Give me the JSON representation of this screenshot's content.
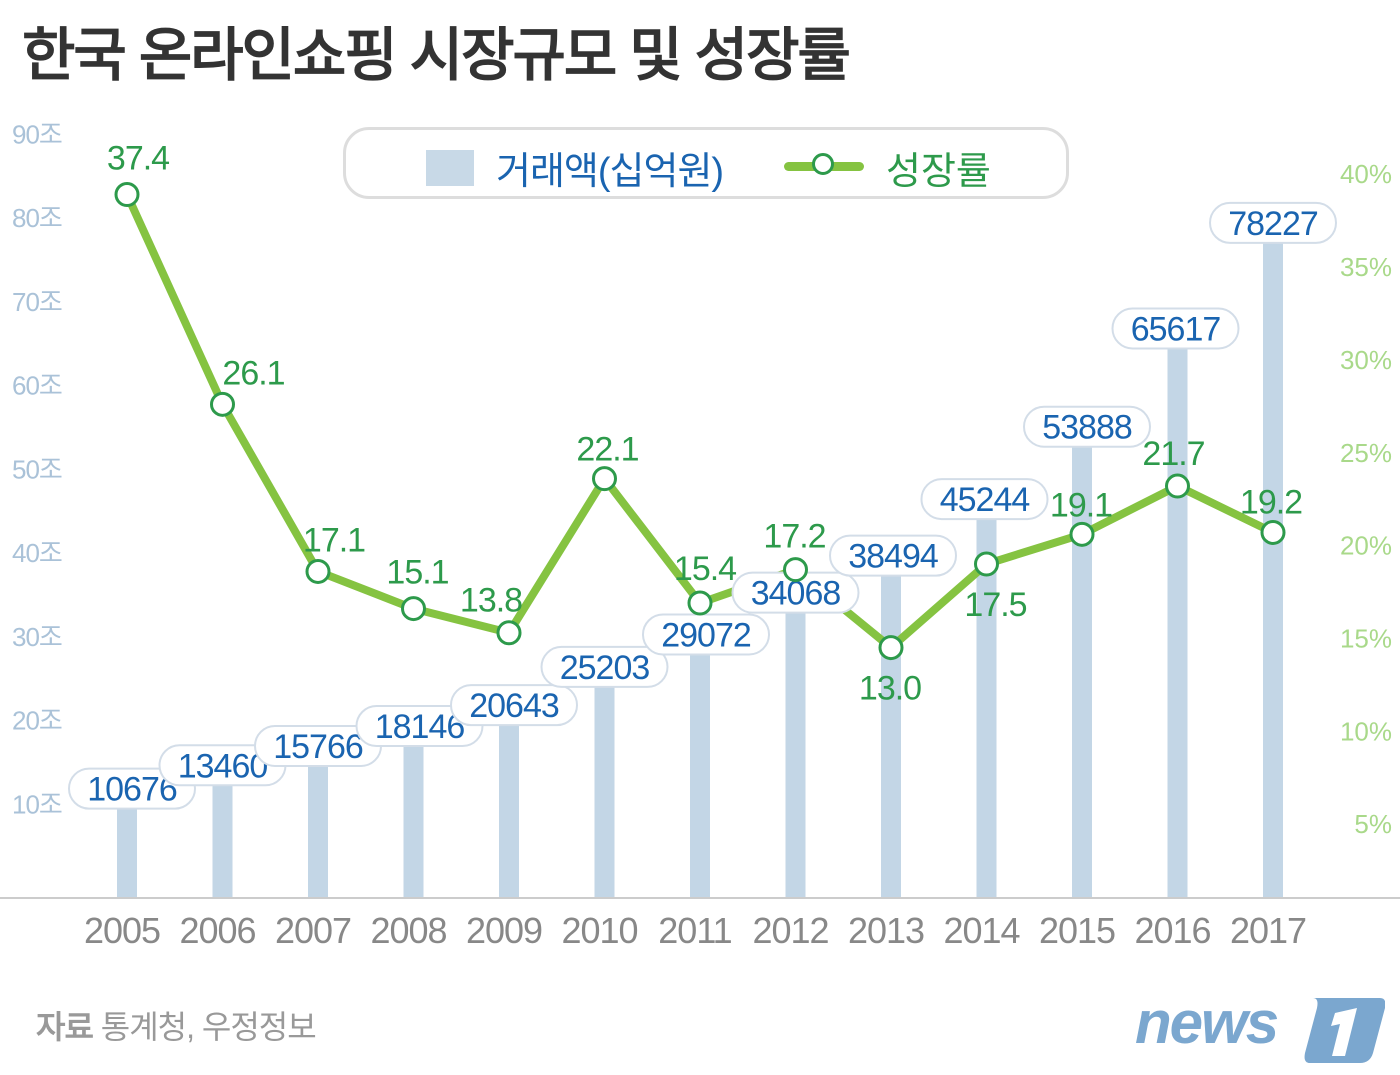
{
  "title": "한국 온라인쇼핑 시장규모 및 성장률",
  "source": {
    "label": "자료",
    "text": "통계청, 우정정보"
  },
  "logo_text": "news1",
  "colors": {
    "bar": "#c3d6e6",
    "bar_label": "#1a64b0",
    "line": "#85c341",
    "point_stroke": "#2d9a4b",
    "line_label": "#2d9a4b",
    "left_axis": "#aac2d8",
    "right_axis": "#a9d98a",
    "year": "#888888",
    "logo": "#7ba7cf"
  },
  "chart_data": {
    "type": "bar+line",
    "categories": [
      "2005",
      "2006",
      "2007",
      "2008",
      "2009",
      "2010",
      "2011",
      "2012",
      "2013",
      "2014",
      "2015",
      "2016",
      "2017"
    ],
    "series": [
      {
        "name": "거래액(십억원)",
        "type": "bar",
        "axis": "left",
        "values": [
          10676,
          13460,
          15766,
          18146,
          20643,
          25203,
          29072,
          34068,
          38494,
          45244,
          53888,
          65617,
          78227
        ]
      },
      {
        "name": "성장률",
        "type": "line",
        "axis": "right",
        "values": [
          37.4,
          26.1,
          17.1,
          15.1,
          13.8,
          22.1,
          15.4,
          17.2,
          13.0,
          17.5,
          19.1,
          21.7,
          19.2
        ]
      }
    ],
    "left_axis": {
      "ticks": [
        "10조",
        "20조",
        "30조",
        "40조",
        "50조",
        "60조",
        "70조",
        "80조",
        "90조"
      ],
      "range_trillion": [
        0,
        90
      ]
    },
    "right_axis": {
      "ticks": [
        "5%",
        "10%",
        "15%",
        "20%",
        "25%",
        "30%",
        "35%",
        "40%"
      ],
      "range_percent": [
        0,
        40
      ]
    },
    "legend": {
      "bar": "거래액(십억원)",
      "line": "성장률",
      "position": "top"
    }
  }
}
